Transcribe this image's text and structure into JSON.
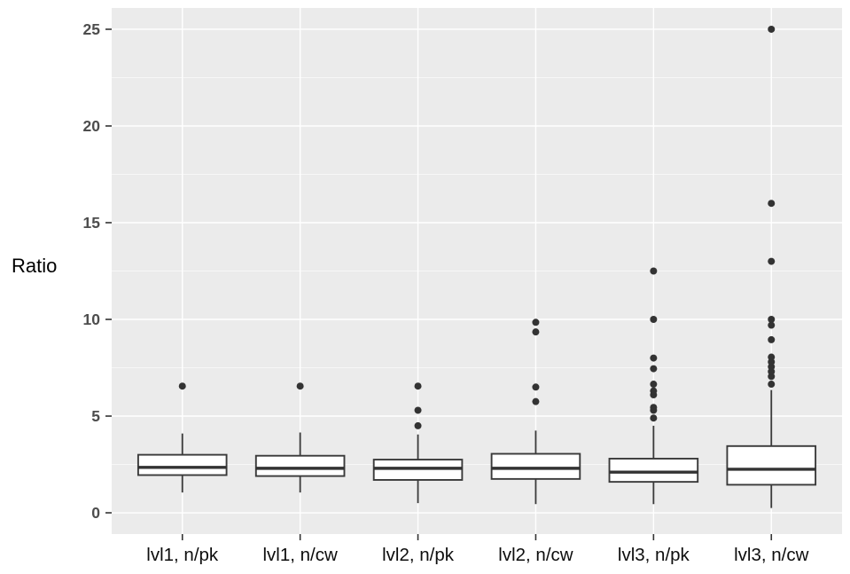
{
  "figure": {
    "ylabel": "Ratio"
  },
  "chart_data": {
    "type": "boxplot",
    "title": "",
    "xlabel": "",
    "ylabel": "Ratio",
    "categories": [
      "lvl1, n/pk",
      "lvl1, n/cw",
      "lvl2, n/pk",
      "lvl2, n/cw",
      "lvl3, n/pk",
      "lvl3, n/cw"
    ],
    "y_ticks": [
      0,
      5,
      10,
      15,
      20,
      25
    ],
    "y_minor_ticks": [
      2.5,
      7.5,
      12.5,
      17.5,
      22.5
    ],
    "ylim": [
      -1.1,
      26.1
    ],
    "grid": "major-and-minor",
    "legend_position": "none",
    "series": [
      {
        "name": "lvl1, n/pk",
        "whisker_low": 1.05,
        "q1": 1.95,
        "median": 2.35,
        "q3": 3.0,
        "whisker_high": 4.1,
        "outliers": [
          6.55
        ]
      },
      {
        "name": "lvl1, n/cw",
        "whisker_low": 1.05,
        "q1": 1.9,
        "median": 2.3,
        "q3": 2.95,
        "whisker_high": 4.15,
        "outliers": [
          6.55
        ]
      },
      {
        "name": "lvl2, n/pk",
        "whisker_low": 0.5,
        "q1": 1.7,
        "median": 2.3,
        "q3": 2.75,
        "whisker_high": 4.05,
        "outliers": [
          4.5,
          5.3,
          6.55
        ]
      },
      {
        "name": "lvl2, n/cw",
        "whisker_low": 0.45,
        "q1": 1.75,
        "median": 2.3,
        "q3": 3.05,
        "whisker_high": 4.25,
        "outliers": [
          5.75,
          6.5,
          9.35,
          9.85
        ]
      },
      {
        "name": "lvl3, n/pk",
        "whisker_low": 0.45,
        "q1": 1.6,
        "median": 2.1,
        "q3": 2.8,
        "whisker_high": 4.5,
        "outliers": [
          4.9,
          5.3,
          5.45,
          6.1,
          6.3,
          6.65,
          7.45,
          8.0,
          10.0,
          12.5
        ]
      },
      {
        "name": "lvl3, n/cw",
        "whisker_low": 0.25,
        "q1": 1.45,
        "median": 2.25,
        "q3": 3.45,
        "whisker_high": 6.35,
        "outliers": [
          6.65,
          7.05,
          7.3,
          7.55,
          7.8,
          8.05,
          8.95,
          9.7,
          10.0,
          13.0,
          16.0,
          25.0
        ]
      }
    ],
    "colors": {
      "panel_background": "#ebebeb",
      "grid_major": "#ffffff",
      "grid_minor": "#f7f7f7",
      "box_stroke": "#3a3a3a",
      "box_fill": "#ffffff",
      "median": "#333333",
      "outlier": "#333333",
      "tick_mark": "#333333",
      "y_tick_text": "#4d4d4d",
      "x_tick_text": "#0d0d0d",
      "axis_title_text": "#000000"
    }
  }
}
